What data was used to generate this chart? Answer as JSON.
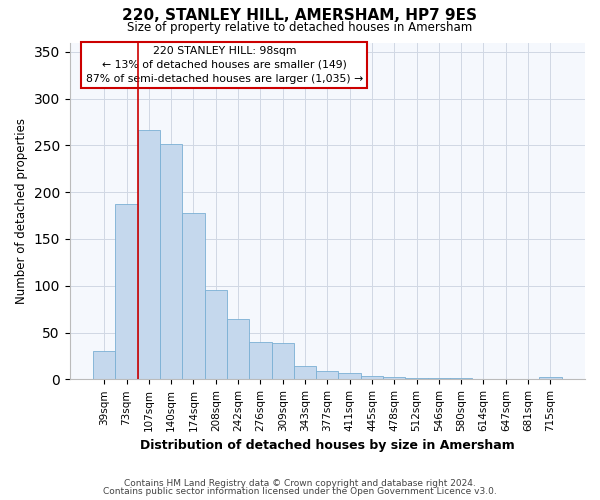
{
  "title": "220, STANLEY HILL, AMERSHAM, HP7 9ES",
  "subtitle": "Size of property relative to detached houses in Amersham",
  "xlabel": "Distribution of detached houses by size in Amersham",
  "ylabel": "Number of detached properties",
  "bar_labels": [
    "39sqm",
    "73sqm",
    "107sqm",
    "140sqm",
    "174sqm",
    "208sqm",
    "242sqm",
    "276sqm",
    "309sqm",
    "343sqm",
    "377sqm",
    "411sqm",
    "445sqm",
    "478sqm",
    "512sqm",
    "546sqm",
    "580sqm",
    "614sqm",
    "647sqm",
    "681sqm",
    "715sqm"
  ],
  "bar_values": [
    30,
    187,
    267,
    251,
    178,
    96,
    65,
    40,
    39,
    14,
    9,
    7,
    4,
    2,
    1,
    1,
    1,
    0,
    0,
    0,
    2
  ],
  "bar_color": "#c5d8ed",
  "bar_edge_color": "#7aafd4",
  "vline_x_index": 2,
  "vline_color": "#cc0000",
  "annotation_title": "220 STANLEY HILL: 98sqm",
  "annotation_line1": "← 13% of detached houses are smaller (149)",
  "annotation_line2": "87% of semi-detached houses are larger (1,035) →",
  "annotation_box_facecolor": "#ffffff",
  "annotation_box_edgecolor": "#cc0000",
  "ylim": [
    0,
    360
  ],
  "yticks": [
    0,
    50,
    100,
    150,
    200,
    250,
    300,
    350
  ],
  "footer1": "Contains HM Land Registry data © Crown copyright and database right 2024.",
  "footer2": "Contains public sector information licensed under the Open Government Licence v3.0.",
  "fig_facecolor": "#ffffff",
  "plot_facecolor": "#f5f8fd",
  "grid_color": "#d0d8e4"
}
